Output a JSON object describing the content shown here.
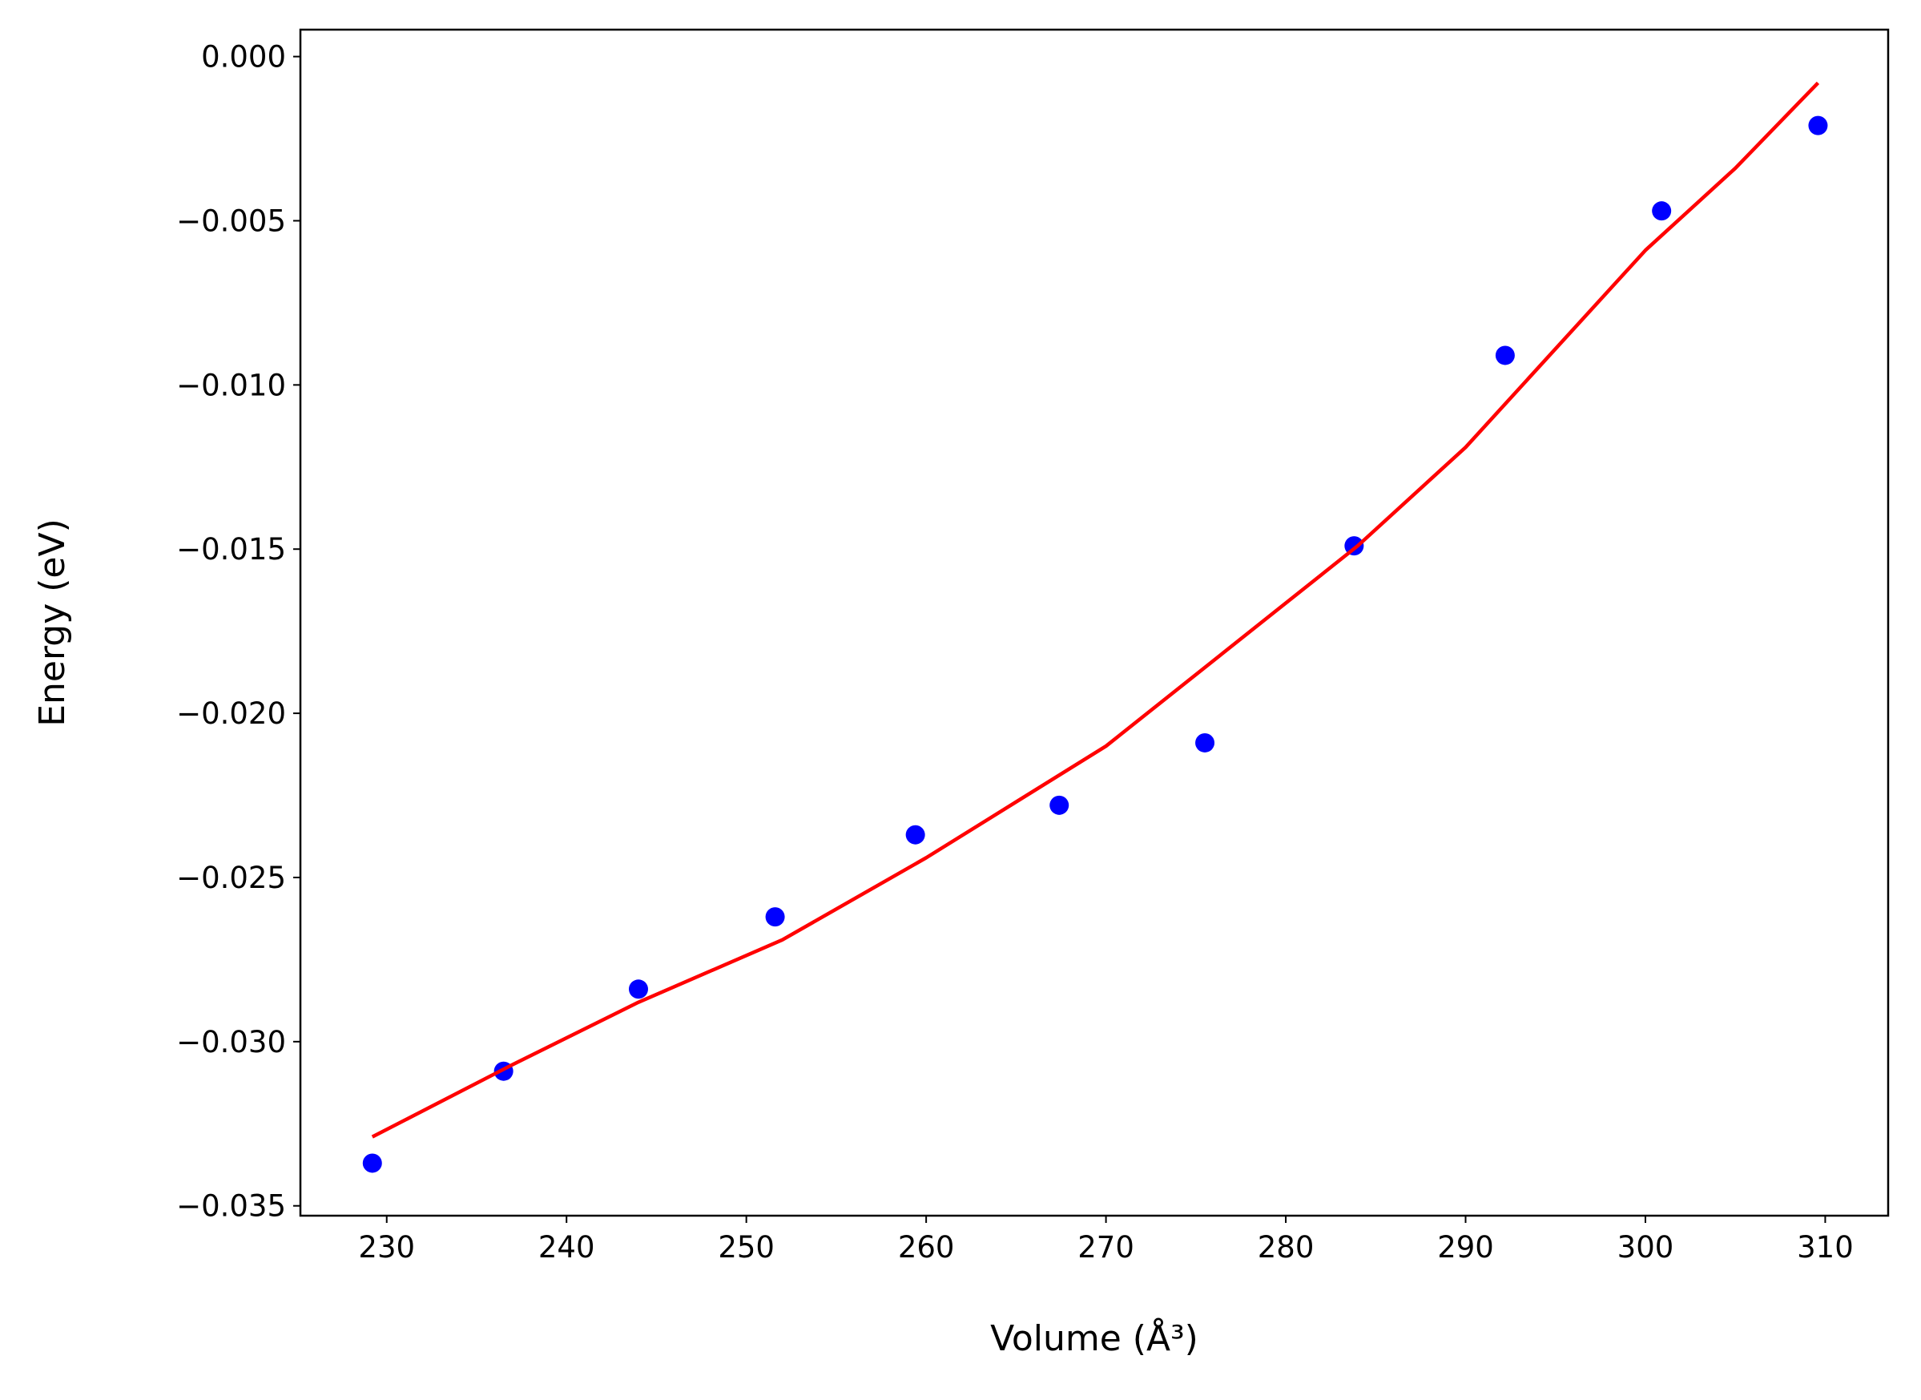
{
  "chart_data": {
    "type": "scatter",
    "x_label": "Volume (Å³)",
    "y_label": "Energy (eV)",
    "xlim": [
      225.2,
      313.5
    ],
    "ylim": [
      -0.0353,
      0.00082
    ],
    "xticks": [
      230,
      240,
      250,
      260,
      270,
      280,
      290,
      300,
      310
    ],
    "yticks": [
      {
        "value": 0,
        "label": "0.000"
      },
      {
        "value": -0.005,
        "label": "−0.005"
      },
      {
        "value": -0.01,
        "label": "−0.010"
      },
      {
        "value": -0.015,
        "label": "−0.015"
      },
      {
        "value": -0.02,
        "label": "−0.020"
      },
      {
        "value": -0.025,
        "label": "−0.025"
      },
      {
        "value": -0.03,
        "label": "−0.030"
      },
      {
        "value": -0.035,
        "label": "−0.035"
      }
    ],
    "series": [
      {
        "type": "scatter",
        "color": "#0000ff",
        "x": [
          229.2,
          236.5,
          244.0,
          251.6,
          259.4,
          267.4,
          275.5,
          283.8,
          292.2,
          300.9,
          309.6
        ],
        "values": [
          -0.0337,
          -0.0309,
          -0.0284,
          -0.0262,
          -0.0237,
          -0.0228,
          -0.0209,
          -0.0149,
          -0.0091,
          -0.0047,
          -0.0021
        ]
      },
      {
        "type": "line",
        "color": "#ff0000",
        "x": [
          229.2,
          237,
          244,
          252,
          260,
          270,
          284,
          290,
          300,
          305,
          309.6
        ],
        "values": [
          -0.0329,
          -0.0307,
          -0.0288,
          -0.0269,
          -0.0244,
          -0.021,
          -0.0149,
          -0.0119,
          -0.0059,
          -0.0034,
          -0.0008
        ]
      }
    ]
  }
}
